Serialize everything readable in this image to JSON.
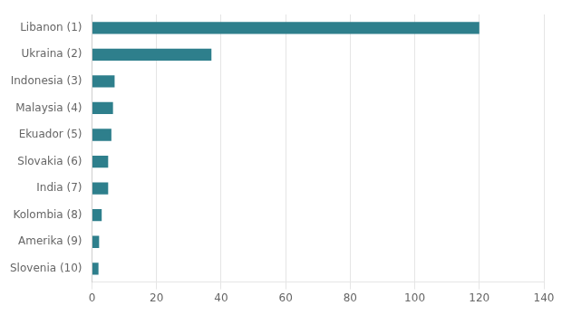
{
  "chart_data": {
    "type": "bar",
    "orientation": "horizontal",
    "categories": [
      "Slovenia (10)",
      "Amerika (9)",
      "Kolombia (8)",
      "India (7)",
      "Slovakia (6)",
      "Ekuador (5)",
      "Malaysia (4)",
      "Indonesia (3)",
      "Ukraina (2)",
      "Libanon (1)"
    ],
    "values": [
      2.0,
      2.2,
      3.0,
      5.0,
      5.0,
      6.0,
      6.5,
      7.0,
      37.0,
      120.0
    ],
    "color": "#2e7f8c",
    "xlim": [
      0,
      140
    ],
    "xticks": [
      0,
      20,
      40,
      60,
      80,
      100,
      120,
      140
    ],
    "grid": true
  }
}
